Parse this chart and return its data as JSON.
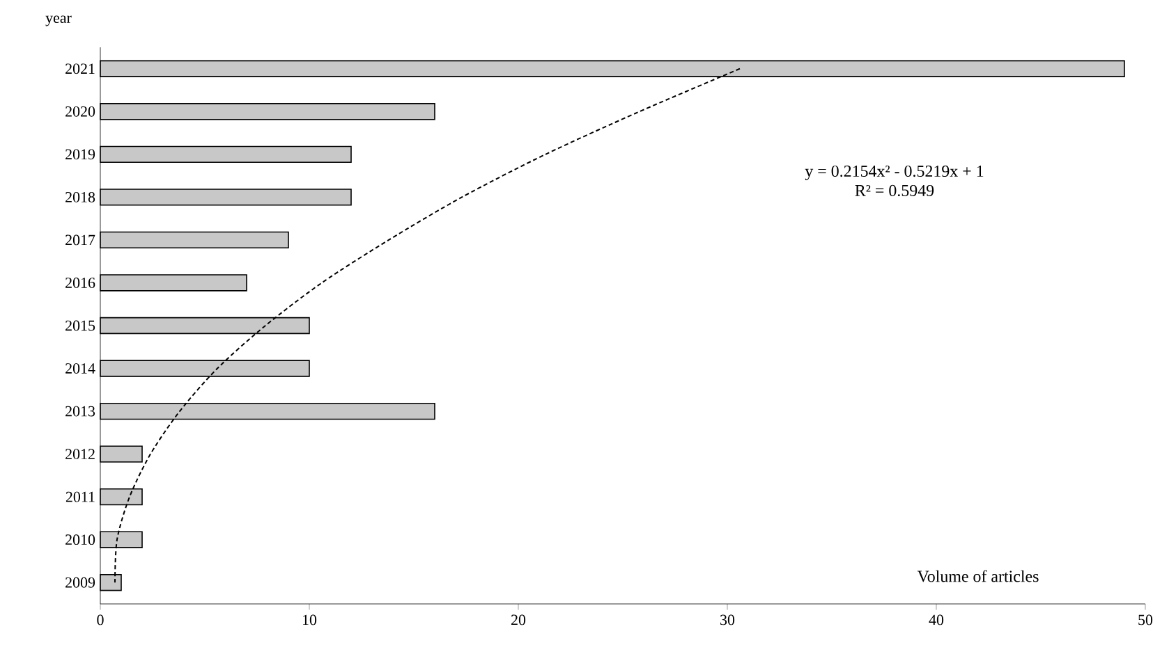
{
  "chart_data": {
    "type": "bar",
    "orientation": "horizontal",
    "ylabel": "year",
    "xlabel": "Volume of articles",
    "categories": [
      "2021",
      "2020",
      "2019",
      "2018",
      "2017",
      "2016",
      "2015",
      "2014",
      "2013",
      "2012",
      "2011",
      "2010",
      "2009"
    ],
    "series": [
      {
        "color": "#c8c8c8",
        "values": [
          49,
          16,
          12,
          12,
          9,
          7,
          10,
          10,
          16,
          2,
          2,
          2,
          1
        ]
      },
      {
        "type": "line",
        "color": "#000000",
        "line_style": "dashed",
        "marker": "none",
        "values": [
          30.6,
          25.8,
          21.3,
          17.3,
          13.8,
          10.6,
          7.9,
          5.6,
          3.8,
          2.4,
          1.4,
          0.8,
          0.7
        ]
      }
    ],
    "xlim": [
      0,
      50
    ],
    "xticks": [
      0,
      10,
      20,
      30,
      40,
      50
    ],
    "annotations": [
      "y = 0.2154x² - 0.5219x + 1",
      "R² = 0.5949"
    ],
    "grid": false
  }
}
